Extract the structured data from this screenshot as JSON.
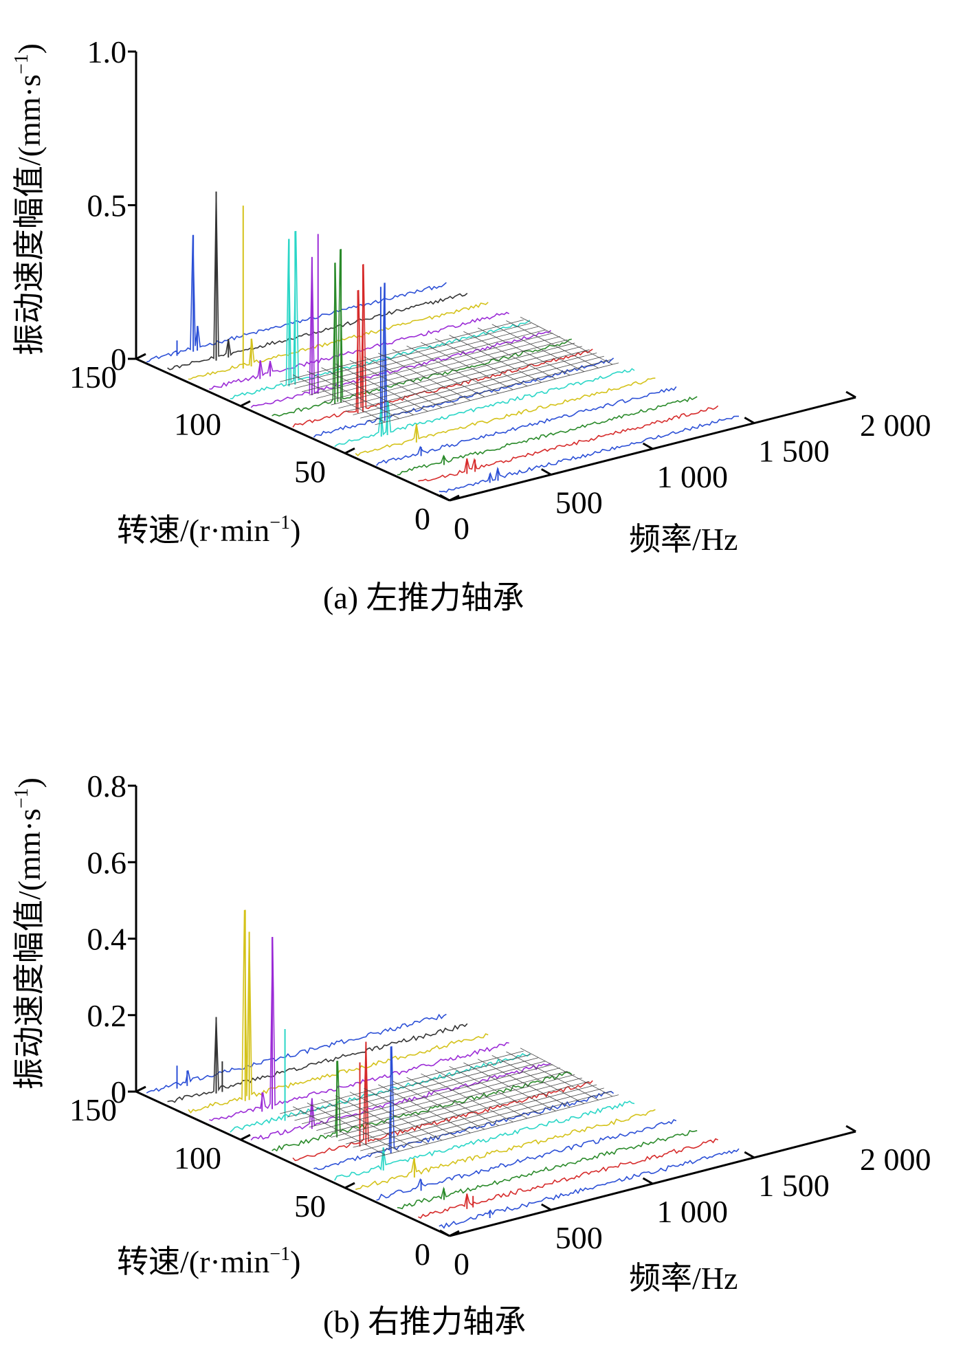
{
  "chart_data": [
    {
      "type": "line",
      "view": "3d-waterfall",
      "caption": "(a) 左推力轴承",
      "zlabel": "振动速度幅值/(mm·s",
      "zlabel_sup": "−1",
      "zlabel_end": ")",
      "ylabel": "转速/(r·min",
      "ylabel_sup": "−1",
      "ylabel_end": ")",
      "xlabel": "频率/Hz",
      "z_ticks": [
        "0",
        "0.5",
        "1.0"
      ],
      "z_tick_values": [
        0,
        0.5,
        1.0
      ],
      "zlim": [
        0,
        1.0
      ],
      "y_ticks": [
        "0",
        "50",
        "100",
        "150"
      ],
      "y_tick_values": [
        0,
        50,
        100,
        150
      ],
      "ylim": [
        0,
        150
      ],
      "x_ticks": [
        "0",
        "500",
        "1 000",
        "1 500",
        "2 000"
      ],
      "x_tick_values": [
        0,
        500,
        1000,
        1500,
        2000
      ],
      "xlim": [
        0,
        2000
      ],
      "series": [
        {
          "speed": 5,
          "color": "#2b4fd6",
          "peaks": [
            [
              250,
              0.03
            ],
            [
              290,
              0.04
            ]
          ]
        },
        {
          "speed": 15,
          "color": "#d62b2b",
          "peaks": [
            [
              240,
              0.05
            ],
            [
              280,
              0.04
            ]
          ]
        },
        {
          "speed": 25,
          "color": "#2a8a2a",
          "peaks": [
            [
              230,
              0.03
            ]
          ]
        },
        {
          "speed": 35,
          "color": "#2b4fd6",
          "peaks": [
            [
              220,
              0.03
            ]
          ]
        },
        {
          "speed": 45,
          "color": "#d4c21a",
          "peaks": [
            [
              300,
              0.06
            ]
          ]
        },
        {
          "speed": 55,
          "color": "#2bd6c7",
          "peaks": [
            [
              230,
              0.09
            ],
            [
              260,
              0.11
            ]
          ]
        },
        {
          "speed": 65,
          "color": "#2b4fd6",
          "peaks": [
            [
              330,
              0.44
            ],
            [
              350,
              0.45
            ]
          ]
        },
        {
          "speed": 75,
          "color": "#d62b2b",
          "peaks": [
            [
              320,
              0.4
            ],
            [
              345,
              0.48
            ]
          ]
        },
        {
          "speed": 85,
          "color": "#2a8a2a",
          "peaks": [
            [
              310,
              0.46
            ],
            [
              340,
              0.5
            ]
          ]
        },
        {
          "speed": 95,
          "color": "#9b2bd6",
          "peaks": [
            [
              300,
              0.45
            ],
            [
              330,
              0.52
            ]
          ]
        },
        {
          "speed": 105,
          "color": "#2bd6c7",
          "peaks": [
            [
              290,
              0.48
            ],
            [
              320,
              0.5
            ]
          ]
        },
        {
          "speed": 115,
          "color": "#9b2bd6",
          "peaks": [
            [
              250,
              0.06
            ],
            [
              300,
              0.05
            ]
          ]
        },
        {
          "speed": 125,
          "color": "#d4c21a",
          "peaks": [
            [
              270,
              0.53
            ],
            [
              310,
              0.09
            ]
          ]
        },
        {
          "speed": 135,
          "color": "#333333",
          "peaks": [
            [
              240,
              0.55
            ],
            [
              300,
              0.06
            ]
          ]
        },
        {
          "speed": 145,
          "color": "#2b4fd6",
          "peaks": [
            [
              150,
              0.05
            ],
            [
              230,
              0.38
            ],
            [
              250,
              0.08
            ]
          ]
        }
      ]
    },
    {
      "type": "line",
      "view": "3d-waterfall",
      "caption": "(b) 右推力轴承",
      "zlabel": "振动速度幅值/(mm·s",
      "zlabel_sup": "−1",
      "zlabel_end": ")",
      "ylabel": "转速/(r·min",
      "ylabel_sup": "−1",
      "ylabel_end": ")",
      "xlabel": "频率/Hz",
      "z_ticks": [
        "0",
        "0.2",
        "0.4",
        "0.6",
        "0.8"
      ],
      "z_tick_values": [
        0,
        0.2,
        0.4,
        0.6,
        0.8
      ],
      "zlim": [
        0,
        0.8
      ],
      "y_ticks": [
        "0",
        "50",
        "100",
        "150"
      ],
      "y_tick_values": [
        0,
        50,
        100,
        150
      ],
      "ylim": [
        0,
        150
      ],
      "x_ticks": [
        "0",
        "500",
        "1 000",
        "1 500",
        "2 000"
      ],
      "x_tick_values": [
        0,
        500,
        1000,
        1500,
        2000
      ],
      "xlim": [
        0,
        2000
      ],
      "series": [
        {
          "speed": 5,
          "color": "#2b4fd6",
          "peaks": [
            [
              250,
              0.02
            ]
          ]
        },
        {
          "speed": 15,
          "color": "#d62b2b",
          "peaks": [
            [
              240,
              0.04
            ],
            [
              270,
              0.03
            ]
          ]
        },
        {
          "speed": 25,
          "color": "#2a8a2a",
          "peaks": [
            [
              230,
              0.03
            ]
          ]
        },
        {
          "speed": 35,
          "color": "#2b4fd6",
          "peaks": [
            [
              220,
              0.03
            ]
          ]
        },
        {
          "speed": 45,
          "color": "#d4c21a",
          "peaks": [
            [
              290,
              0.05
            ]
          ]
        },
        {
          "speed": 55,
          "color": "#2bd6c7",
          "peaks": [
            [
              240,
              0.06
            ]
          ]
        },
        {
          "speed": 65,
          "color": "#2b4fd6",
          "peaks": [
            [
              380,
              0.28
            ]
          ]
        },
        {
          "speed": 75,
          "color": "#d62b2b",
          "peaks": [
            [
              360,
              0.27
            ],
            [
              330,
              0.22
            ]
          ]
        },
        {
          "speed": 85,
          "color": "#2a8a2a",
          "peaks": [
            [
              320,
              0.2
            ]
          ]
        },
        {
          "speed": 95,
          "color": "#9b2bd6",
          "peaks": [
            [
              300,
              0.08
            ]
          ]
        },
        {
          "speed": 105,
          "color": "#2bd6c7",
          "peaks": [
            [
              270,
              0.24
            ]
          ]
        },
        {
          "speed": 115,
          "color": "#9b2bd6",
          "peaks": [
            [
              310,
              0.45
            ],
            [
              260,
              0.05
            ]
          ]
        },
        {
          "speed": 125,
          "color": "#d4c21a",
          "peaks": [
            [
              280,
              0.5
            ],
            [
              300,
              0.44
            ]
          ]
        },
        {
          "speed": 135,
          "color": "#333333",
          "peaks": [
            [
              240,
              0.2
            ],
            [
              270,
              0.08
            ]
          ]
        },
        {
          "speed": 145,
          "color": "#2b4fd6",
          "peaks": [
            [
              150,
              0.06
            ],
            [
              200,
              0.04
            ]
          ]
        }
      ]
    }
  ]
}
